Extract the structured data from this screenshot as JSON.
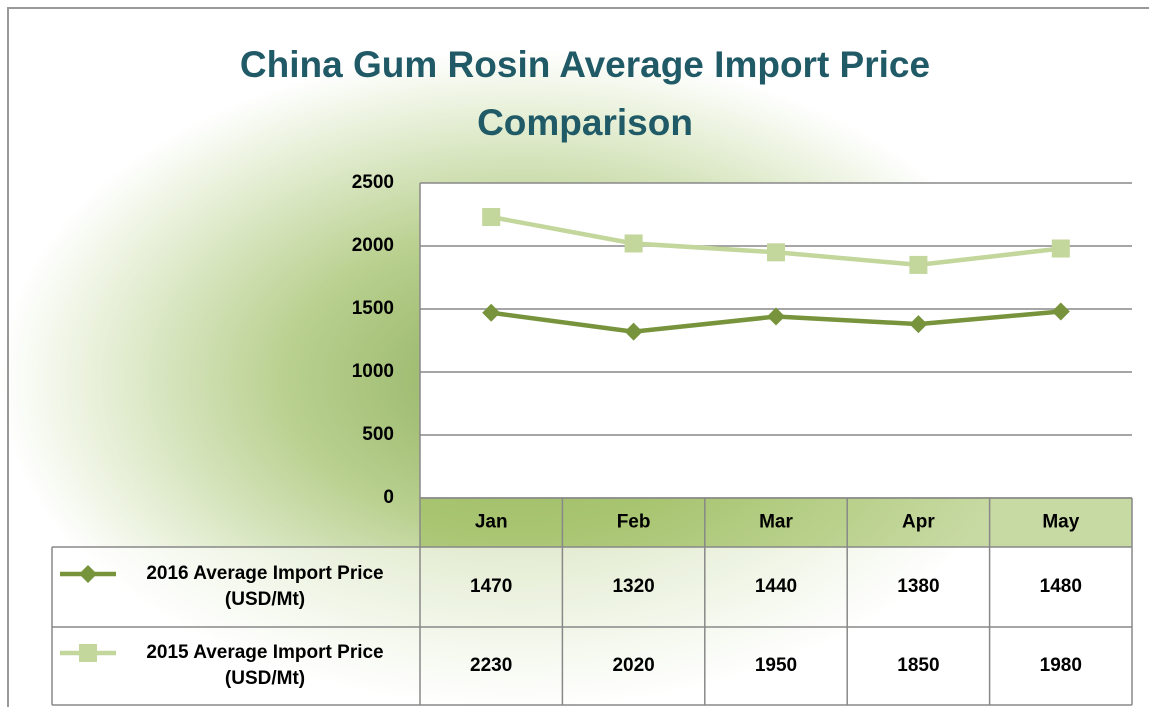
{
  "chart_data": {
    "type": "line",
    "title": "China Gum Rosin Average Import Price Comparison",
    "categories": [
      "Jan",
      "Feb",
      "Mar",
      "Apr",
      "May"
    ],
    "series": [
      {
        "name": "2016 Average Import Price (USD/Mt)",
        "color": "#77933c",
        "marker": "diamond",
        "values": [
          1470,
          1320,
          1440,
          1380,
          1480
        ]
      },
      {
        "name": "2015 Average Import Price (USD/Mt)",
        "color": "#c3d69b",
        "marker": "square",
        "values": [
          2230,
          2020,
          1950,
          1850,
          1980
        ]
      }
    ],
    "ylim": [
      0,
      2500
    ],
    "yticks": [
      0,
      500,
      1000,
      1500,
      2000,
      2500
    ],
    "grid": true,
    "data_table": true
  }
}
